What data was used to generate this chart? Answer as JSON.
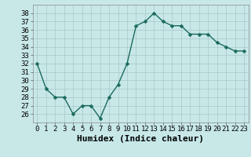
{
  "x": [
    0,
    1,
    2,
    3,
    4,
    5,
    6,
    7,
    8,
    9,
    10,
    11,
    12,
    13,
    14,
    15,
    16,
    17,
    18,
    19,
    20,
    21,
    22,
    23
  ],
  "y": [
    32,
    29,
    28,
    28,
    26,
    27,
    27,
    25.5,
    28,
    29.5,
    32,
    36.5,
    37,
    38,
    37,
    36.5,
    36.5,
    35.5,
    35.5,
    35.5,
    34.5,
    34,
    33.5,
    33.5
  ],
  "xlabel": "Humidex (Indice chaleur)",
  "ylim": [
    25,
    39
  ],
  "xlim": [
    -0.5,
    23.5
  ],
  "yticks": [
    26,
    27,
    28,
    29,
    30,
    31,
    32,
    33,
    34,
    35,
    36,
    37,
    38
  ],
  "xticks": [
    0,
    1,
    2,
    3,
    4,
    5,
    6,
    7,
    8,
    9,
    10,
    11,
    12,
    13,
    14,
    15,
    16,
    17,
    18,
    19,
    20,
    21,
    22,
    23
  ],
  "line_color": "#1a6b5a",
  "bg_color": "#c8e8e8",
  "grid_color": "#a8c8c8",
  "xlabel_fontsize": 8,
  "tick_fontsize": 6.5,
  "line_width": 1.0,
  "marker_size": 2.5
}
